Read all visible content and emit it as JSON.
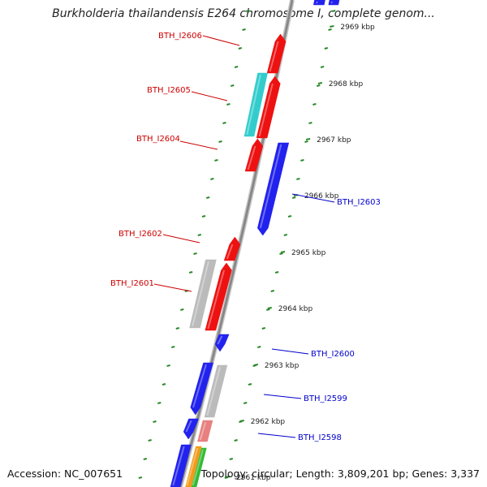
{
  "title": "Burkholderia thailandensis E264 chromosome I, complete genom...",
  "footer": {
    "accession": "Accession: NC_007651",
    "summary": "Topology: circular; Length: 3,809,201 bp; Genes: 3,337"
  },
  "colors": {
    "forward_strand": "#ee1111",
    "reverse_strand": "#2222ee",
    "cyan_gene": "#33cccc",
    "grey_gene": "#bbbbbb",
    "pink_gene": "#e88080",
    "orange_gene": "#f29a1a",
    "green_gene": "#33bb33",
    "backbone": "#888888",
    "dotted_track": "#2a8a2a",
    "forward_label": "#cc0000",
    "reverse_label": "#0000cc"
  },
  "scale": {
    "unit": "kbp",
    "ticks": [
      "2969 kbp",
      "2968 kbp",
      "2967 kbp",
      "2966 kbp",
      "2965 kbp",
      "2964 kbp",
      "2963 kbp",
      "2962 kbp",
      "2961 kbp"
    ]
  },
  "genes": [
    {
      "label": "BTH_I2606",
      "strand": "forward"
    },
    {
      "label": "BTH_I2605",
      "strand": "forward"
    },
    {
      "label": "BTH_I2604",
      "strand": "forward"
    },
    {
      "label": "BTH_I2603",
      "strand": "reverse"
    },
    {
      "label": "BTH_I2602",
      "strand": "forward"
    },
    {
      "label": "BTH_I2601",
      "strand": "forward"
    },
    {
      "label": "BTH_I2600",
      "strand": "reverse"
    },
    {
      "label": "BTH_I2599",
      "strand": "reverse"
    },
    {
      "label": "BTH_I2598",
      "strand": "reverse"
    }
  ]
}
